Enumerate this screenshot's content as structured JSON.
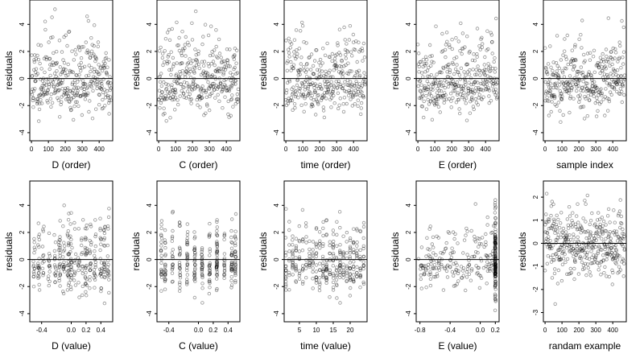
{
  "chart_data": [
    {
      "id": "d-order",
      "type": "scatter",
      "xlabel": "D (order)",
      "ylabel": "residuals",
      "xlim": [
        -10,
        480
      ],
      "ylim": [
        -4.6,
        5.8
      ],
      "xticks": [
        0,
        100,
        200,
        300,
        400
      ],
      "xtick_labels": [
        "0",
        "100",
        "200",
        "300",
        "400"
      ],
      "yticks": [
        -4,
        -2,
        0,
        2,
        4
      ],
      "ytick_labels": [
        "-4",
        "-2",
        "0",
        "2",
        "4"
      ],
      "hline": 0,
      "gen": {
        "kind": "order",
        "n": 350,
        "xmin": 0,
        "xmax": 470,
        "sd": 1.4,
        "skew": 1.8,
        "wave": 0.6,
        "seed": 11
      }
    },
    {
      "id": "c-order",
      "type": "scatter",
      "xlabel": "C (order)",
      "ylabel": "residuals",
      "xlim": [
        -10,
        480
      ],
      "ylim": [
        -4.6,
        5.8
      ],
      "xticks": [
        0,
        100,
        200,
        300,
        400
      ],
      "xtick_labels": [
        "0",
        "100",
        "200",
        "300",
        "400"
      ],
      "yticks": [
        -4,
        -2,
        0,
        2,
        4
      ],
      "ytick_labels": [
        "-4",
        "-2",
        "0",
        "2",
        "4"
      ],
      "hline": 0,
      "gen": {
        "kind": "order",
        "n": 350,
        "xmin": 0,
        "xmax": 470,
        "sd": 1.3,
        "skew": 1.8,
        "wave": 0.3,
        "seed": 23
      }
    },
    {
      "id": "time-order",
      "type": "scatter",
      "xlabel": "time (order)",
      "ylabel": "residuals",
      "xlim": [
        -10,
        480
      ],
      "ylim": [
        -4.6,
        5.8
      ],
      "xticks": [
        0,
        100,
        200,
        300,
        400
      ],
      "xtick_labels": [
        "0",
        "100",
        "200",
        "300",
        "400"
      ],
      "yticks": [
        -4,
        -2,
        0,
        2,
        4
      ],
      "ytick_labels": [
        "-4",
        "-2",
        "0",
        "2",
        "4"
      ],
      "hline": 0,
      "gen": {
        "kind": "order",
        "n": 350,
        "xmin": 0,
        "xmax": 470,
        "sd": 1.3,
        "skew": 1.8,
        "wave": 0.4,
        "seed": 37
      }
    },
    {
      "id": "e-order",
      "type": "scatter",
      "xlabel": "E (order)",
      "ylabel": "residuals",
      "xlim": [
        -10,
        480
      ],
      "ylim": [
        -4.6,
        5.8
      ],
      "xticks": [
        0,
        100,
        200,
        300,
        400
      ],
      "xtick_labels": [
        "0",
        "100",
        "200",
        "300",
        "400"
      ],
      "yticks": [
        -4,
        -2,
        0,
        2,
        4
      ],
      "ytick_labels": [
        "-4",
        "-2",
        "0",
        "2",
        "4"
      ],
      "hline": 0,
      "gen": {
        "kind": "order",
        "n": 350,
        "xmin": 0,
        "xmax": 470,
        "sd": 1.3,
        "skew": 1.8,
        "wave": 0.5,
        "seed": 41
      }
    },
    {
      "id": "sample-index",
      "type": "scatter",
      "xlabel": "sample index",
      "ylabel": "residuals",
      "xlim": [
        -10,
        480
      ],
      "ylim": [
        -4.6,
        5.8
      ],
      "xticks": [
        0,
        100,
        200,
        300,
        400
      ],
      "xtick_labels": [
        "0",
        "100",
        "200",
        "300",
        "400"
      ],
      "yticks": [
        -4,
        -2,
        0,
        2,
        4
      ],
      "ytick_labels": [
        "-4",
        "-2",
        "0",
        "2",
        "4"
      ],
      "hline": 0,
      "gen": {
        "kind": "order",
        "n": 350,
        "xmin": 0,
        "xmax": 470,
        "sd": 1.3,
        "skew": 1.8,
        "wave": 0.5,
        "seed": 53
      }
    },
    {
      "id": "d-value",
      "type": "scatter",
      "xlabel": "D (value)",
      "ylabel": "residuals",
      "xlim": [
        -0.56,
        0.56
      ],
      "ylim": [
        -4.6,
        5.8
      ],
      "xticks": [
        -0.4,
        0.0,
        0.2,
        0.4
      ],
      "xtick_labels": [
        "-0.4",
        "0.0",
        "0.2",
        "0.4"
      ],
      "yticks": [
        -4,
        -2,
        0,
        2,
        4
      ],
      "ytick_labels": [
        "-4",
        "-2",
        "0",
        "2",
        "4"
      ],
      "hline": 0,
      "gen": {
        "kind": "columns",
        "n": 330,
        "columns": [
          -0.5,
          -0.44,
          -0.38,
          -0.3,
          -0.22,
          -0.16,
          -0.1,
          -0.04,
          0.0,
          0.05,
          0.1,
          0.15,
          0.2,
          0.26,
          0.32,
          0.4,
          0.45,
          0.5
        ],
        "jitter": 0.012,
        "sd": 1.3,
        "skew": 1.8,
        "seed": 61
      }
    },
    {
      "id": "c-value",
      "type": "scatter",
      "xlabel": "C (value)",
      "ylabel": "residuals",
      "xlim": [
        -0.56,
        0.56
      ],
      "ylim": [
        -4.6,
        5.8
      ],
      "xticks": [
        -0.4,
        0.0,
        0.2,
        0.4
      ],
      "xtick_labels": [
        "-0.4",
        "0.0",
        "0.2",
        "0.4"
      ],
      "yticks": [
        -4,
        -2,
        0,
        2,
        4
      ],
      "ytick_labels": [
        "-4",
        "-2",
        "0",
        "2",
        "4"
      ],
      "hline": 0,
      "gen": {
        "kind": "columns",
        "n": 320,
        "columns": [
          -0.5,
          -0.45,
          -0.35,
          -0.25,
          -0.15,
          -0.05,
          0.05,
          0.15,
          0.25,
          0.35,
          0.45,
          0.5
        ],
        "jitter": 0.006,
        "sd": 1.2,
        "skew": 1.8,
        "seed": 71
      }
    },
    {
      "id": "time-value",
      "type": "scatter",
      "xlabel": "time (value)",
      "ylabel": "residuals",
      "xlim": [
        0.5,
        25.0
      ],
      "ylim": [
        -4.6,
        5.8
      ],
      "xticks": [
        5,
        10,
        15,
        20
      ],
      "xtick_labels": [
        "5",
        "10",
        "15",
        "20"
      ],
      "yticks": [
        -4,
        -2,
        0,
        2,
        4
      ],
      "ytick_labels": [
        "-4",
        "-2",
        "0",
        "2",
        "4"
      ],
      "hline": 0,
      "gen": {
        "kind": "columns",
        "n": 340,
        "columns": [
          1,
          2,
          3,
          4,
          5,
          6,
          7,
          8,
          9,
          10,
          11,
          12,
          13,
          14,
          15,
          16,
          17,
          18,
          19,
          20,
          21,
          22,
          23,
          24
        ],
        "jitter": 0.06,
        "sd": 1.2,
        "skew": 1.8,
        "seed": 83
      }
    },
    {
      "id": "e-value",
      "type": "scatter",
      "xlabel": "E (value)",
      "ylabel": "residuals",
      "xlim": [
        -0.85,
        0.25
      ],
      "ylim": [
        -4.6,
        5.8
      ],
      "xticks": [
        -0.8,
        -0.4,
        0.0,
        0.2
      ],
      "xtick_labels": [
        "-0.8",
        "-0.4",
        "0.0",
        "0.2"
      ],
      "yticks": [
        -4,
        -2,
        0,
        2,
        4
      ],
      "ytick_labels": [
        "-4",
        "-2",
        "0",
        "2",
        "4"
      ],
      "hline": 0,
      "gen": {
        "kind": "edge",
        "n": 340,
        "xmin": -0.82,
        "xmax": 0.2,
        "edge": 0.2,
        "edge_share": 0.45,
        "sd": 1.3,
        "skew": 1.8,
        "seed": 97
      }
    },
    {
      "id": "random-example",
      "type": "scatter",
      "xlabel": "randam example",
      "ylabel": "residuals",
      "xlim": [
        -10,
        480
      ],
      "ylim": [
        -3.4,
        2.7
      ],
      "xticks": [
        0,
        100,
        200,
        300,
        400
      ],
      "xtick_labels": [
        "0",
        "100",
        "200",
        "300",
        "400"
      ],
      "yticks": [
        -3,
        -2,
        -1,
        0,
        1,
        2
      ],
      "ytick_labels": [
        "-3",
        "-2",
        "-1",
        "0",
        "1",
        "2"
      ],
      "hline": 0,
      "gen": {
        "kind": "order",
        "n": 400,
        "xmin": 0,
        "xmax": 470,
        "sd": 1.0,
        "skew": 0,
        "wave": 0,
        "seed": 113
      }
    }
  ]
}
